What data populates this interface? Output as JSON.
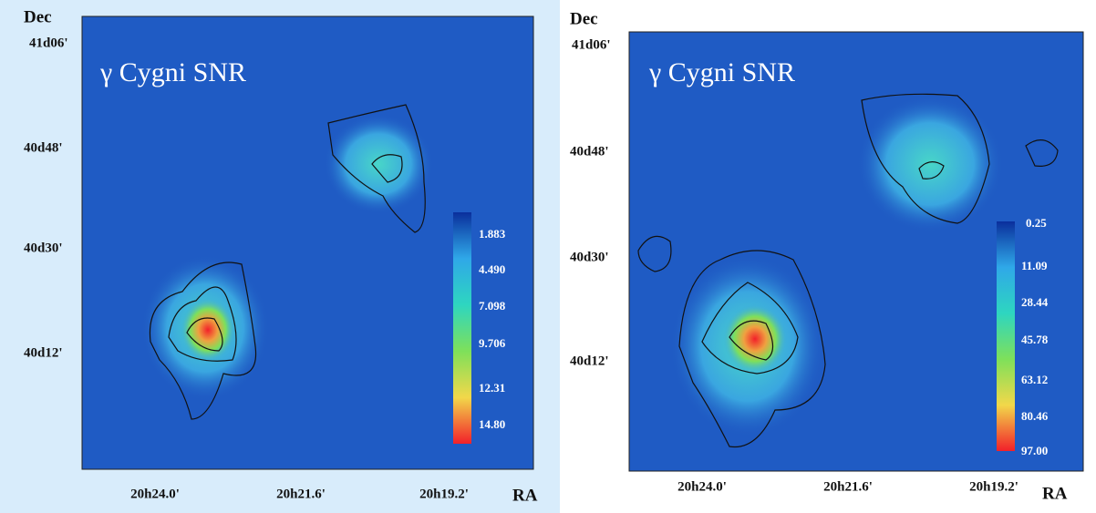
{
  "panels": [
    {
      "dec_label": "Dec",
      "ra_label": "RA",
      "title": "γ Cygni SNR",
      "y_labels": [
        "41d06'",
        "40d48'",
        "40d30'",
        "40d12'"
      ],
      "x_labels": [
        "20h24.0'",
        "20h21.6'",
        "20h19.2'"
      ],
      "colorbar_labels": [
        "1.883",
        "4.490",
        "7.098",
        "9.706",
        "12.31",
        "14.80"
      ]
    },
    {
      "dec_label": "Dec",
      "ra_label": "RA",
      "title": "γ Cygni SNR",
      "y_labels": [
        "41d06'",
        "40d48'",
        "40d30'",
        "40d12'"
      ],
      "x_labels": [
        "20h24.0'",
        "20h21.6'",
        "20h19.2'"
      ],
      "colorbar_labels": [
        "0.25",
        "11.09",
        "28.44",
        "45.78",
        "63.12",
        "80.46",
        "97.00"
      ]
    }
  ]
}
